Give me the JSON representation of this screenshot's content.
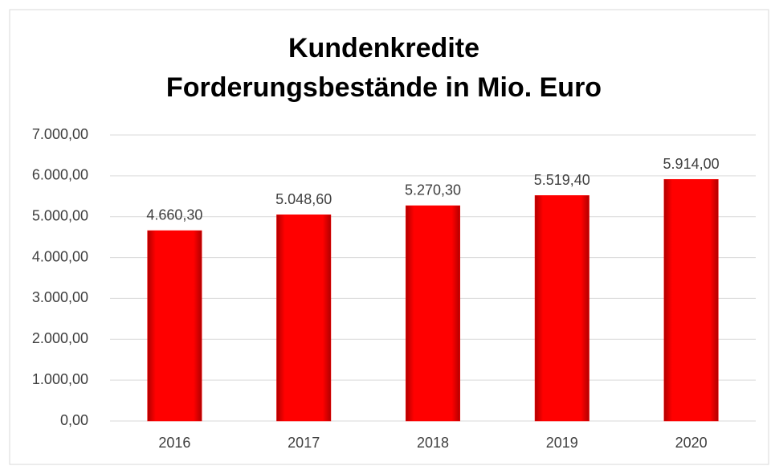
{
  "chart_data": {
    "type": "bar",
    "title": [
      "Kundenkredite",
      "Forderungsbestände in Mio. Euro"
    ],
    "categories": [
      "2016",
      "2017",
      "2018",
      "2019",
      "2020"
    ],
    "values": [
      4660.3,
      5048.6,
      5270.3,
      5519.4,
      5914.0
    ],
    "value_labels": [
      "4.660,30",
      "5.048,60",
      "5.270,30",
      "5.519,40",
      "5.914,00"
    ],
    "color": "#ff0000",
    "ylim": [
      0,
      7000
    ],
    "yticks": [
      {
        "value": 0,
        "label": "0,00"
      },
      {
        "value": 1000,
        "label": "1.000,00"
      },
      {
        "value": 2000,
        "label": "2.000,00"
      },
      {
        "value": 3000,
        "label": "3.000,00"
      },
      {
        "value": 4000,
        "label": "4.000,00"
      },
      {
        "value": 5000,
        "label": "5.000,00"
      },
      {
        "value": 6000,
        "label": "6.000,00"
      },
      {
        "value": 7000,
        "label": "7.000,00"
      }
    ],
    "grid": true
  }
}
